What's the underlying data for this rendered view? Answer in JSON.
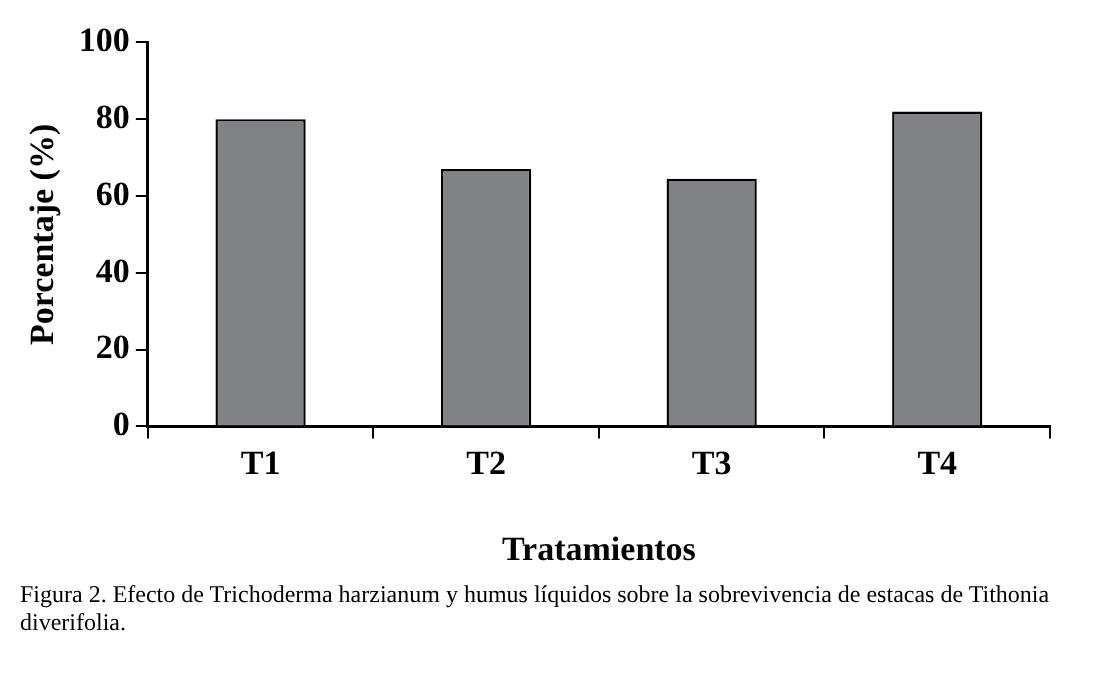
{
  "chart_data": {
    "type": "bar",
    "categories": [
      "T1",
      "T2",
      "T3",
      "T4"
    ],
    "values": [
      80,
      67,
      64.5,
      82
    ],
    "color": "#808285",
    "xlabel": "Tratamientos",
    "ylabel": "Porcentaje (%)",
    "ylim": [
      0,
      100
    ],
    "yticks": [
      0,
      20,
      40,
      60,
      80,
      100
    ],
    "grid": false,
    "legend": false,
    "annotations": [
      "Figura 2.    Efecto de Trichoderma harzianum y humus líquidos sobre la sobrevivencia de estacas de Tithonia diverifolia."
    ]
  }
}
